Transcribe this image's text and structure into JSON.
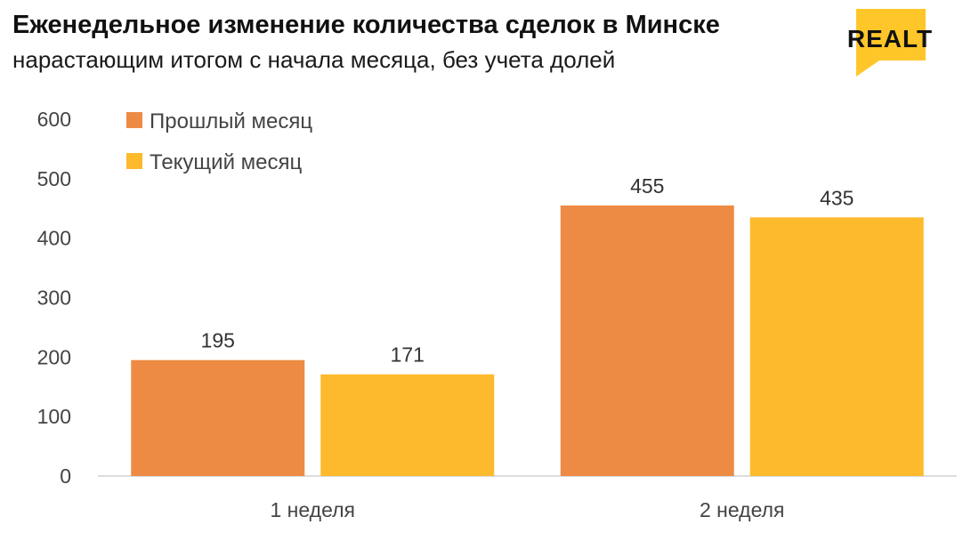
{
  "header": {
    "title": "Еженедельное изменение количества сделок в Минске",
    "subtitle": "нарастающим итогом с начала месяца, без учета долей"
  },
  "logo": {
    "text": "REALT",
    "color": "#FFC629"
  },
  "chart_data": {
    "type": "bar",
    "categories": [
      "1 неделя",
      "2 неделя"
    ],
    "series": [
      {
        "name": "Прошлый месяц",
        "values": [
          195,
          455
        ],
        "color": "#ED8B45"
      },
      {
        "name": "Текущий месяц",
        "values": [
          171,
          435
        ],
        "color": "#FDBA2C"
      }
    ],
    "ylim": [
      0,
      600
    ],
    "yticks": [
      0,
      100,
      200,
      300,
      400,
      500,
      600
    ],
    "grid": false,
    "legend": "top-left"
  }
}
